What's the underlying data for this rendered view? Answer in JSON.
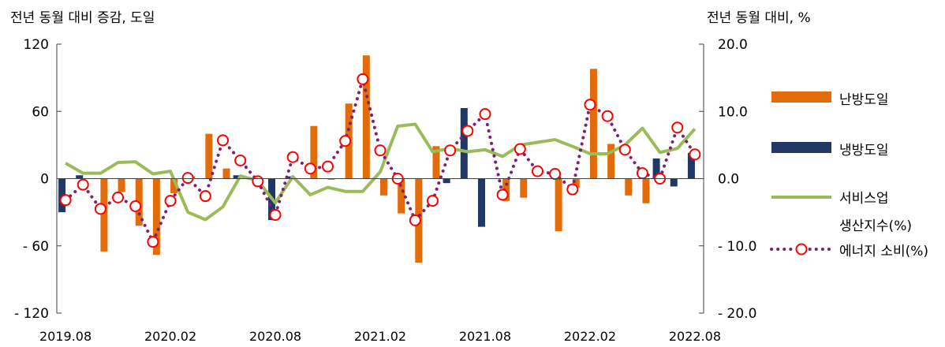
{
  "chart_data": {
    "type": "bar+line",
    "ylabel_left": "전년 동월 대비 증감, 도일",
    "ylabel_right": "전년 동월 대비, %",
    "ylim_left": [
      -120,
      120
    ],
    "yticks_left": [
      "120",
      "60",
      "0",
      "- 60",
      "- 120"
    ],
    "ylim_right": [
      -20,
      20
    ],
    "yticks_right": [
      "20.0",
      "10.0",
      "0.0",
      "- 10.0",
      "- 20.0"
    ],
    "x_tick_labels": [
      "2019.08",
      "2020.02",
      "2020.08",
      "2021.02",
      "2021.08",
      "2022.02",
      "2022.08"
    ],
    "periods": [
      "2019.08",
      "2019.09",
      "2019.10",
      "2019.11",
      "2019.12",
      "2020.01",
      "2020.02",
      "2020.03",
      "2020.04",
      "2020.05",
      "2020.06",
      "2020.07",
      "2020.08",
      "2020.09",
      "2020.10",
      "2020.11",
      "2020.12",
      "2021.01",
      "2021.02",
      "2021.03",
      "2021.04",
      "2021.05",
      "2021.06",
      "2021.07",
      "2021.08",
      "2021.09",
      "2021.10",
      "2021.11",
      "2021.12",
      "2022.01",
      "2022.02",
      "2022.03",
      "2022.04",
      "2022.05",
      "2022.06",
      "2022.07",
      "2022.08"
    ],
    "series": [
      {
        "name": "난방도일",
        "kind": "bar",
        "axis": "left",
        "color": "#e36c0a",
        "values": [
          0,
          0,
          -65,
          -12,
          -42,
          -68,
          -13,
          2,
          40,
          9,
          0,
          0,
          0,
          0,
          47,
          -1,
          67,
          110,
          -15,
          -31,
          -75,
          29,
          0,
          0,
          0,
          -20,
          -17,
          0,
          -47,
          -8,
          98,
          31,
          -15,
          -22,
          0,
          0,
          0
        ]
      },
      {
        "name": "냉방도일",
        "kind": "bar",
        "axis": "left",
        "color": "#1f3864",
        "values": [
          -30,
          3,
          0,
          0,
          0,
          0,
          0,
          0,
          0,
          0,
          3,
          -1,
          -37,
          2,
          0,
          0,
          0,
          0,
          0,
          0,
          0,
          0,
          -4,
          63,
          -43,
          0,
          0,
          0,
          0,
          0,
          0,
          0,
          0,
          0,
          18,
          -7,
          23
        ]
      },
      {
        "name": "서비스업 생산지수(%)",
        "kind": "line",
        "axis": "right",
        "color": "#9bbb59",
        "values": [
          2.3,
          0.8,
          0.8,
          2.4,
          2.5,
          0.7,
          1.1,
          -5.0,
          -6.1,
          -4.2,
          0.4,
          -0.3,
          -3.6,
          0.3,
          -2.4,
          -1.3,
          -1.9,
          -1.9,
          1.0,
          7.8,
          8.1,
          4.0,
          4.5,
          4.0,
          4.3,
          3.3,
          5.0,
          5.4,
          5.8,
          4.8,
          3.7,
          3.7,
          5.0,
          7.5,
          3.9,
          4.5,
          7.4
        ]
      },
      {
        "name": "에너지 소비(%)",
        "kind": "line-marker",
        "axis": "right",
        "color": "#7b1f7b",
        "values": [
          -3.2,
          -0.9,
          -4.5,
          -2.8,
          -4.1,
          -9.4,
          -3.3,
          0.1,
          -2.6,
          5.7,
          2.7,
          -0.4,
          -5.4,
          3.2,
          1.5,
          1.8,
          5.6,
          14.8,
          4.2,
          0.0,
          -6.2,
          -3.3,
          4.2,
          7.1,
          9.6,
          -2.4,
          4.4,
          1.1,
          0.7,
          -1.6,
          11.0,
          9.3,
          4.3,
          0.8,
          0.0,
          7.6,
          3.6
        ]
      }
    ],
    "legend": [
      "난방도일",
      "냉방도일",
      "서비스업",
      "생산지수(%)",
      "에너지  소비(%)"
    ],
    "legend_position": "right",
    "grid": false
  }
}
